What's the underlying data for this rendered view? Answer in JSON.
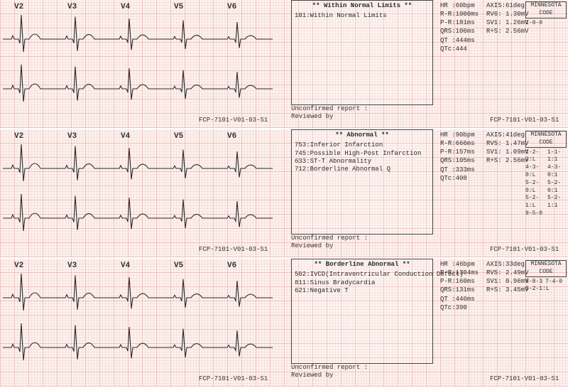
{
  "footer_code": "FCP-7101-V01-03-S1",
  "leads": [
    "V2",
    "V3",
    "V4",
    "V5",
    "V6"
  ],
  "ecg_color": "#2a2a2a",
  "ecg_stroke": 1.1,
  "strips": [
    {
      "report_title": "** Within Normal Limits **",
      "report_lines": [
        "101:Within Normal Limits"
      ],
      "report_footer": [
        "Unconfirmed report :",
        "Reviewed by"
      ],
      "meas_col1": [
        "HR :60bpm",
        "R-R:1000ms",
        "P-R:181ms",
        "QRS:106ms",
        "QT :444ms",
        "QTc:444"
      ],
      "meas_col2": [
        "",
        "AXIS:61deg",
        "RV6: 1.30mV",
        "SV1: 1.26mV",
        "R+S: 2.56mV"
      ],
      "mn_header": "MINNESOTA CODE",
      "mn_codes": [
        [
          "1-0-0",
          ""
        ]
      ]
    },
    {
      "report_title": "** Abnormal **",
      "report_lines": [
        "753:Inferior Infarction",
        "745:Possible High-Post Infarction",
        "633:ST-T Abnormality",
        "712:Borderline Abnormal Q"
      ],
      "report_footer": [
        "Unconfirmed report :",
        "Reviewed by"
      ],
      "meas_col1": [
        "HR :90bpm",
        "R-R:666ms",
        "P-R:157ms",
        "QRS:105ms",
        "QT :333ms",
        "QTc:408"
      ],
      "meas_col2": [
        "",
        "AXIS:41deg",
        "RV5: 1.47mV",
        "SV1: 1.09mV",
        "R+S: 2.56mV"
      ],
      "mn_header": "MINNESOTA CODE",
      "mn_codes": [
        [
          "1-2-2:L",
          "1-1-1:1"
        ],
        [
          "4-3-0:L",
          "4-3-0:1"
        ],
        [
          "5-2-0:L",
          "5-2-0:1"
        ],
        [
          "5-2-1:L",
          "5-2-1:1"
        ],
        [
          "9-5-0",
          ""
        ]
      ]
    },
    {
      "report_title": "** Borderline Abnormal **",
      "report_lines": [
        "502:IVCD(Intraventricular Conduction Defect)",
        "811:Sinus Bradycardia",
        "621:Negative T"
      ],
      "report_footer": [
        "Unconfirmed report :",
        "Reviewed by"
      ],
      "meas_col1": [
        "HR :46bpm",
        "R-R:1304ms",
        "P-R:160ms",
        "QRS:131ms",
        "QT :446ms",
        "QTc:390"
      ],
      "meas_col2": [
        "",
        "AXIS:33deg",
        "RV5: 2.49mV",
        "SV1: 0.96mV",
        "R+S: 3.45mV"
      ],
      "mn_header": "MINNESOTA CODE",
      "mn_codes": [
        [
          "8-8-3",
          "7-4-0"
        ],
        [
          "5-2-1:L",
          ""
        ]
      ]
    }
  ]
}
